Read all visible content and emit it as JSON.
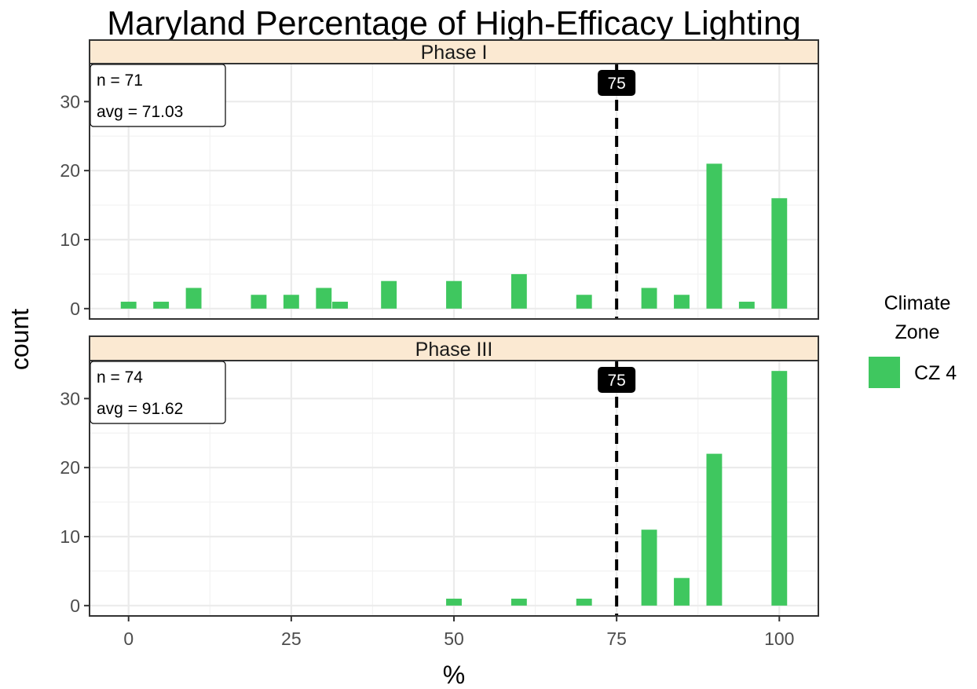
{
  "chart_data": {
    "type": "bar",
    "title": "Maryland Percentage of High-Efficacy Lighting",
    "xlabel": "%",
    "ylabel": "count",
    "xlim": [
      -6,
      106
    ],
    "ylim": [
      -1.5,
      35.5
    ],
    "x_ticks": [
      0,
      25,
      50,
      75,
      100
    ],
    "y_ticks": [
      0,
      10,
      20,
      30
    ],
    "grid": true,
    "bar_color": "#3fc75f",
    "bin_width": 2.4,
    "reference_line": {
      "value": 75,
      "label": "75"
    },
    "legend": {
      "title_lines": [
        "Climate",
        "Zone"
      ],
      "entries": [
        {
          "name": "CZ 4",
          "color": "#3fc75f"
        }
      ],
      "position": "right"
    },
    "panels": [
      {
        "name": "Phase I",
        "annotation": {
          "n": "n = 71",
          "avg": "avg = 71.03"
        },
        "bars": [
          {
            "x": 0,
            "count": 1
          },
          {
            "x": 5,
            "count": 1
          },
          {
            "x": 10,
            "count": 3
          },
          {
            "x": 20,
            "count": 2
          },
          {
            "x": 25,
            "count": 2
          },
          {
            "x": 30,
            "count": 3
          },
          {
            "x": 32.5,
            "count": 1
          },
          {
            "x": 40,
            "count": 4
          },
          {
            "x": 50,
            "count": 4
          },
          {
            "x": 60,
            "count": 5
          },
          {
            "x": 70,
            "count": 2
          },
          {
            "x": 80,
            "count": 3
          },
          {
            "x": 85,
            "count": 2
          },
          {
            "x": 90,
            "count": 21
          },
          {
            "x": 95,
            "count": 1
          },
          {
            "x": 100,
            "count": 16
          }
        ]
      },
      {
        "name": "Phase III",
        "annotation": {
          "n": "n = 74",
          "avg": "avg = 91.62"
        },
        "bars": [
          {
            "x": 50,
            "count": 1
          },
          {
            "x": 60,
            "count": 1
          },
          {
            "x": 70,
            "count": 1
          },
          {
            "x": 80,
            "count": 11
          },
          {
            "x": 85,
            "count": 4
          },
          {
            "x": 90,
            "count": 22
          },
          {
            "x": 100,
            "count": 34
          }
        ]
      }
    ]
  }
}
